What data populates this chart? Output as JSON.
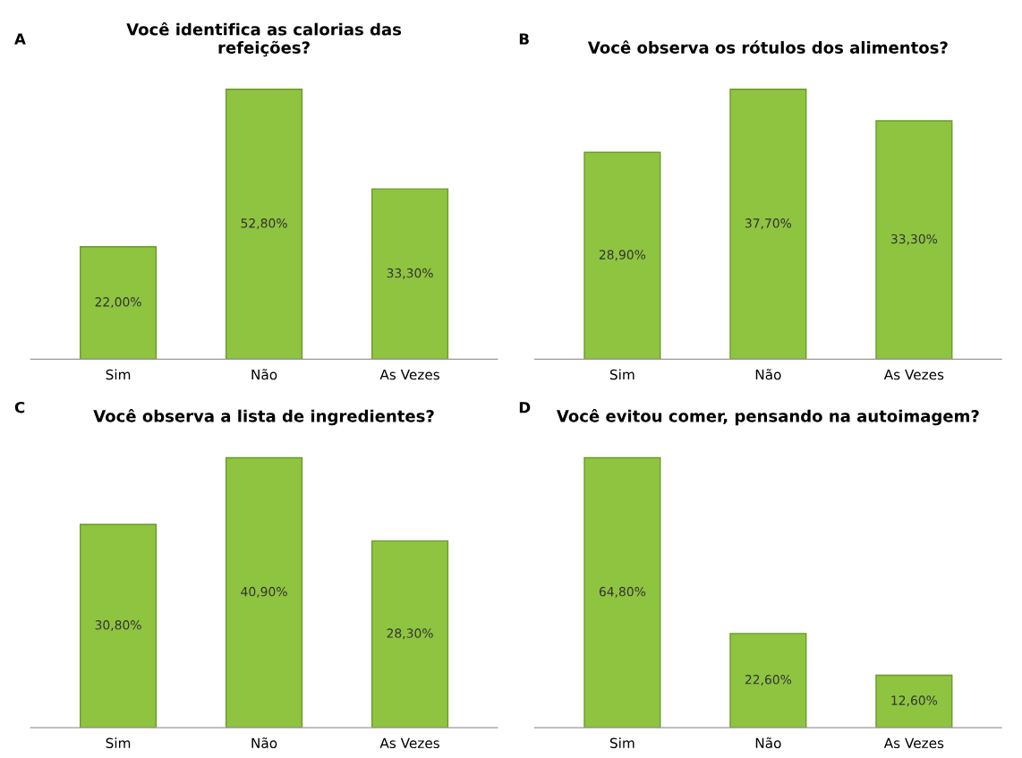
{
  "chart_data": [
    {
      "type": "bar",
      "title": "Você identifica as calorias das\nrefeições?",
      "annotations": [
        "A"
      ],
      "categories": [
        "Sim",
        "Não",
        "As Vezes"
      ],
      "values": [
        22.0,
        52.8,
        33.3
      ],
      "value_labels": [
        "22,00%",
        "52,80%",
        "33,30%"
      ],
      "color": "#8fc440",
      "grid": false,
      "legend": false
    },
    {
      "type": "bar",
      "title": "Você observa os rótulos dos alimentos?",
      "annotations": [
        "B"
      ],
      "categories": [
        "Sim",
        "Não",
        "As Vezes"
      ],
      "values": [
        28.9,
        37.7,
        33.3
      ],
      "value_labels": [
        "28,90%",
        "37,70%",
        "33,30%"
      ],
      "color": "#8fc440",
      "grid": false,
      "legend": false
    },
    {
      "type": "bar",
      "title": "Você observa a lista de ingredientes?",
      "annotations": [
        "C"
      ],
      "categories": [
        "Sim",
        "Não",
        "As Vezes"
      ],
      "values": [
        30.8,
        40.9,
        28.3
      ],
      "value_labels": [
        "30,80%",
        "40,90%",
        "28,30%"
      ],
      "color": "#8fc440",
      "grid": false,
      "legend": false
    },
    {
      "type": "bar",
      "title": "Você evitou comer, pensando na autoimagem?",
      "annotations": [
        "D"
      ],
      "categories": [
        "Sim",
        "Não",
        "As Vezes"
      ],
      "values": [
        64.8,
        22.6,
        12.6
      ],
      "value_labels": [
        "64,80%",
        "22,60%",
        "12,60%"
      ],
      "color": "#8fc440",
      "grid": false,
      "legend": false
    }
  ]
}
